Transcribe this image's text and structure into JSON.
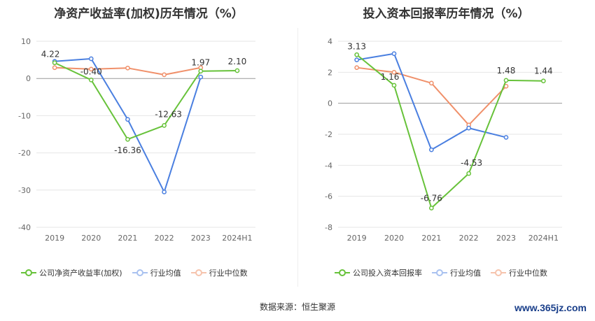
{
  "source_label": "数据来源：恒生聚源",
  "watermark": "www.365jz.com",
  "colors": {
    "company": "#67c23a",
    "avg": "#4a7fe0",
    "median": "#f0906a",
    "grid": "#e6e6e6",
    "axis": "#999999"
  },
  "chart_data": [
    {
      "type": "line",
      "title": "净资产收益率(加权)历年情况（%）",
      "categories": [
        "2019",
        "2020",
        "2021",
        "2022",
        "2023",
        "2024H1"
      ],
      "ylim": [
        -40,
        10
      ],
      "yticks": [
        10,
        0,
        -10,
        -20,
        -30,
        -40
      ],
      "series": [
        {
          "name": "公司净资产收益率(加权)",
          "key": "company",
          "values": [
            4.22,
            -0.4,
            -16.36,
            -12.63,
            1.97,
            2.1
          ],
          "labels": [
            "4.22",
            "-0.40",
            "-16.36",
            "-12.63",
            "1.97",
            "2.10"
          ]
        },
        {
          "name": "行业均值",
          "key": "avg",
          "values": [
            4.6,
            5.3,
            -11.0,
            -30.5,
            0.4,
            null
          ]
        },
        {
          "name": "行业中位数",
          "key": "median",
          "values": [
            2.9,
            2.5,
            2.8,
            1.0,
            2.9,
            null
          ]
        }
      ]
    },
    {
      "type": "line",
      "title": "投入资本回报率历年情况（%）",
      "categories": [
        "2019",
        "2020",
        "2021",
        "2022",
        "2023",
        "2024H1"
      ],
      "ylim": [
        -8,
        4
      ],
      "yticks": [
        4,
        2,
        0,
        -2,
        -4,
        -6,
        -8
      ],
      "series": [
        {
          "name": "公司投入资本回报率",
          "key": "company",
          "values": [
            3.13,
            1.16,
            -6.76,
            -4.53,
            1.48,
            1.44
          ],
          "labels": [
            "3.13",
            "1.16",
            "-6.76",
            "-4.53",
            "1.48",
            "1.44"
          ]
        },
        {
          "name": "行业均值",
          "key": "avg",
          "values": [
            2.8,
            3.2,
            -3.0,
            -1.6,
            -2.2,
            null
          ]
        },
        {
          "name": "行业中位数",
          "key": "median",
          "values": [
            2.3,
            2.0,
            1.3,
            -1.4,
            1.1,
            null
          ]
        }
      ]
    }
  ]
}
